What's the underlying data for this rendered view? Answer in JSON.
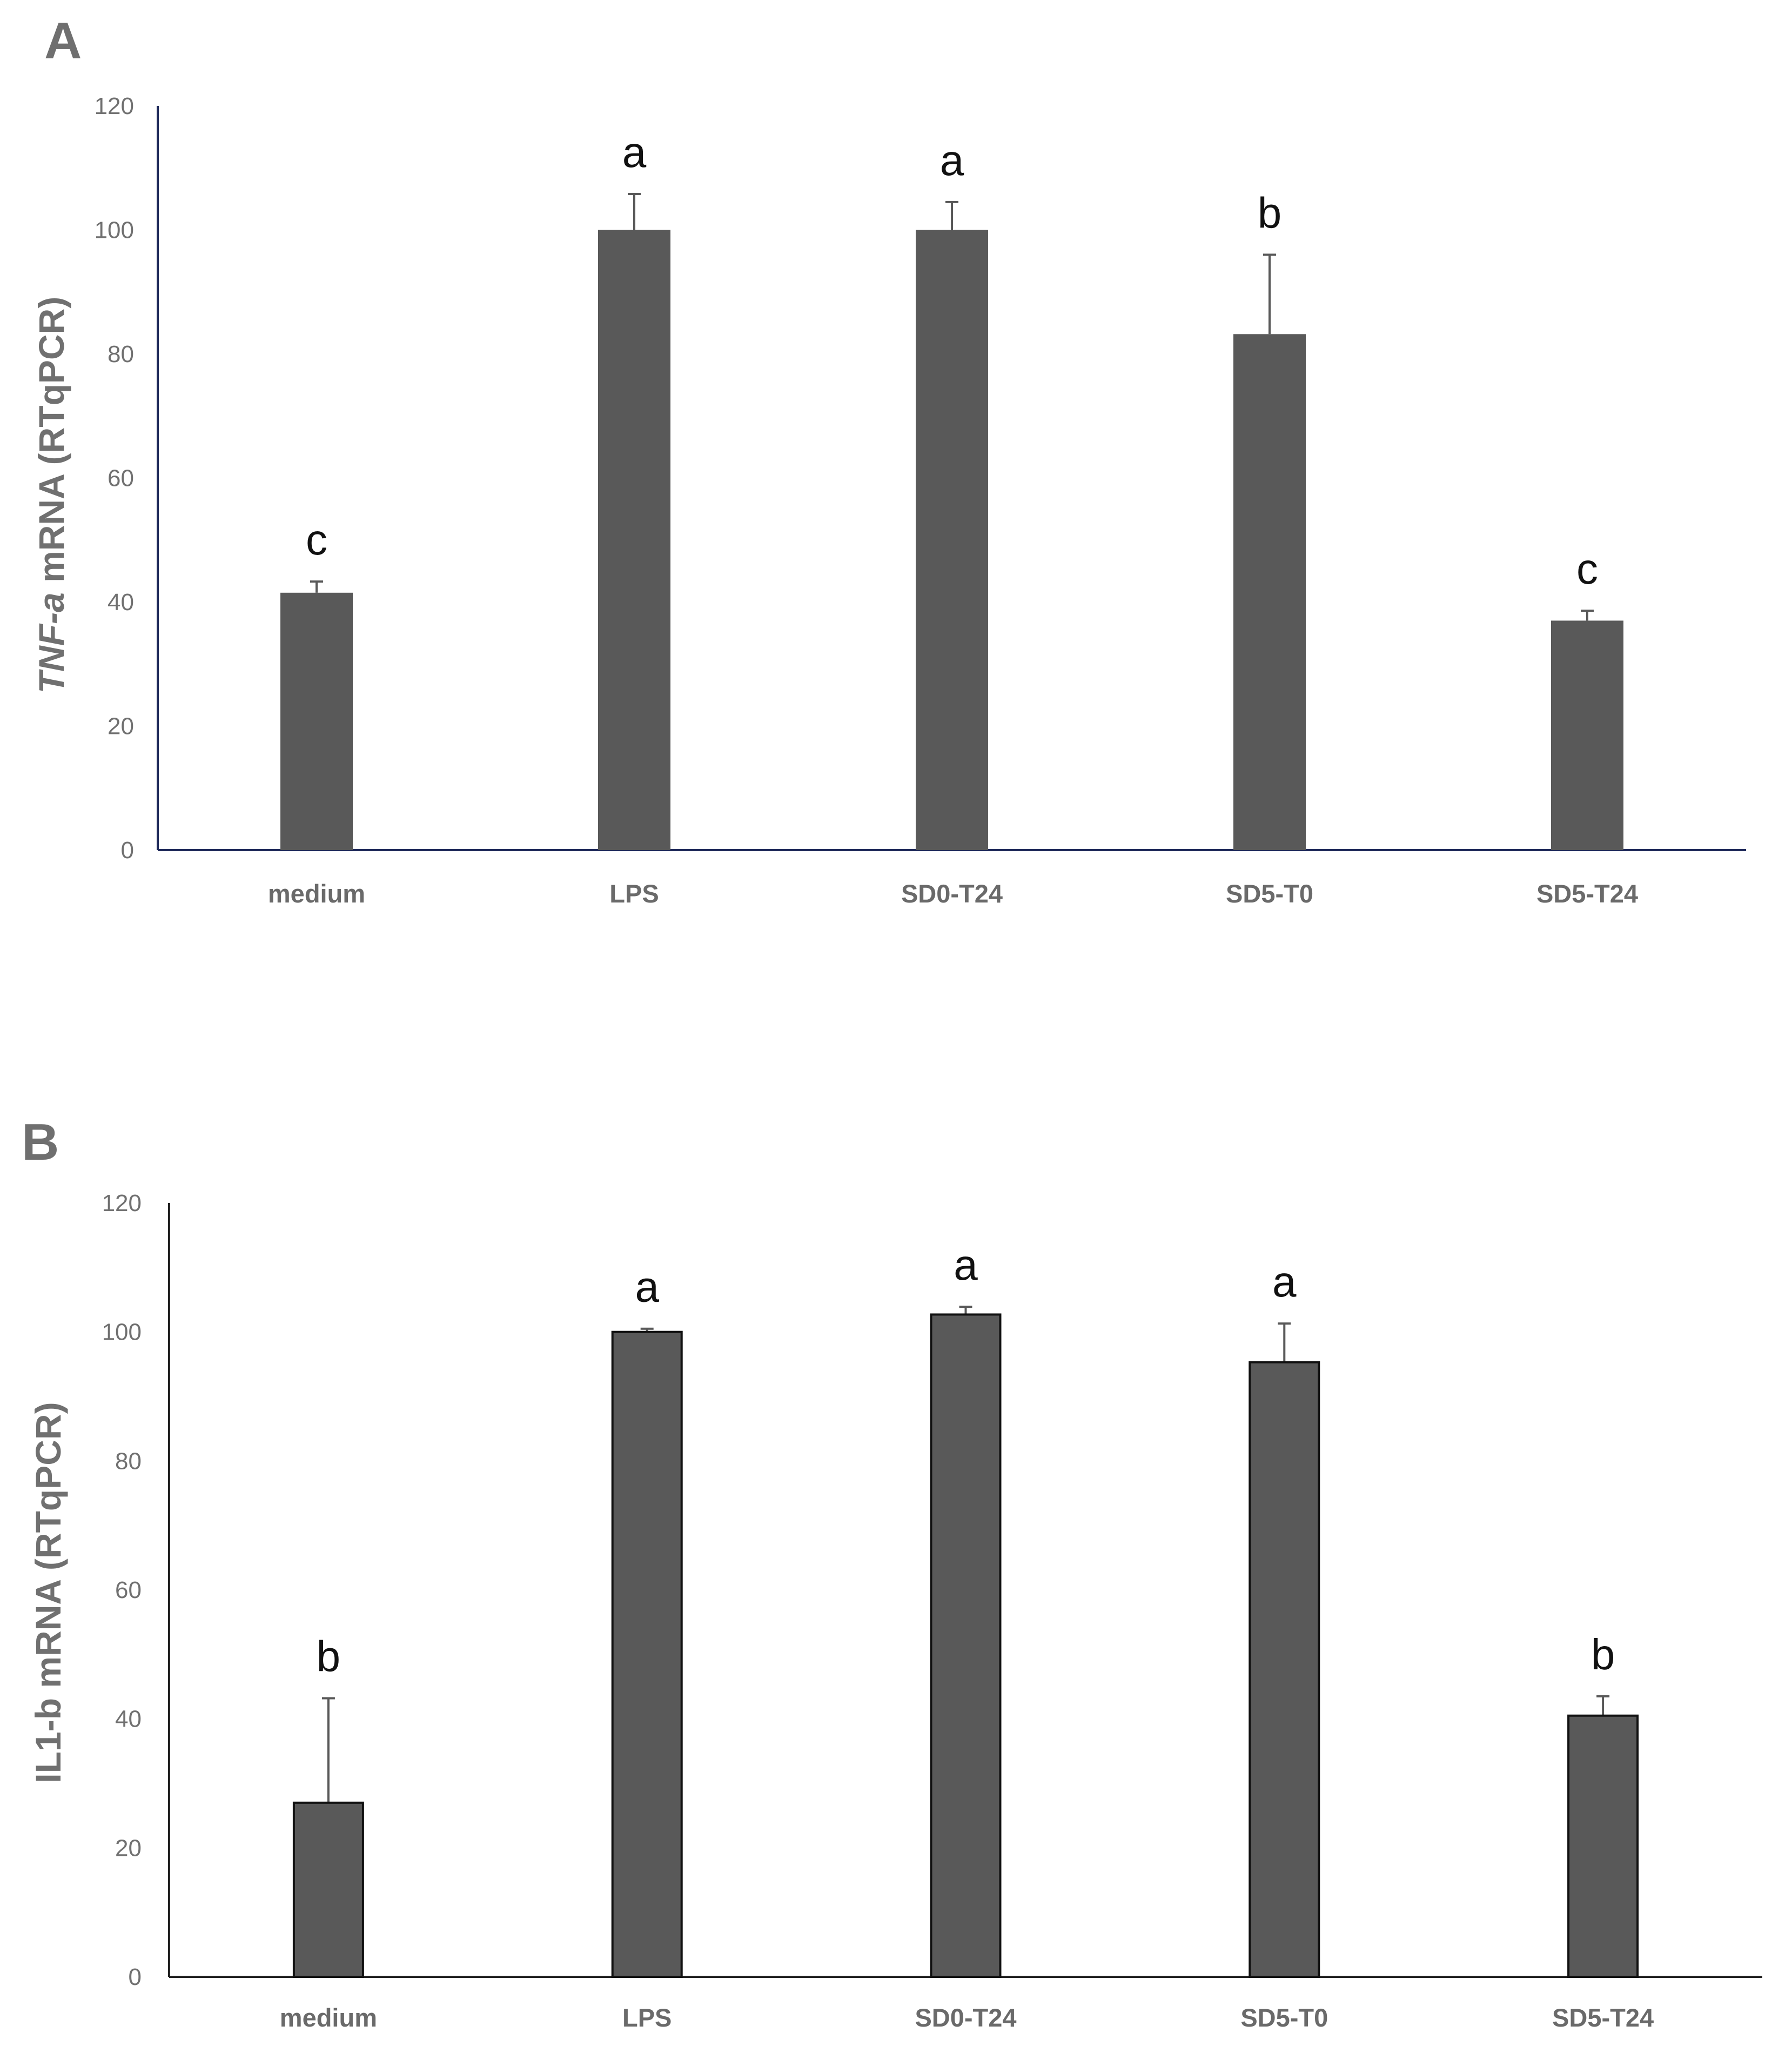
{
  "colors": {
    "bar": "#595959",
    "axisA": "#1f2a5a",
    "axisB": "#222222",
    "errorbar": "#595959"
  },
  "chart_data": [
    {
      "panel": "A",
      "type": "bar",
      "categories": [
        "medium",
        "LPS",
        "SD0-T24",
        "SD5-T0",
        "SD5-T24"
      ],
      "values": [
        41.5,
        100,
        100,
        83.2,
        37
      ],
      "errors": [
        1.8,
        5.8,
        4.5,
        12.8,
        1.6
      ],
      "significance": [
        "c",
        "a",
        "a",
        "b",
        "c"
      ],
      "ylabel_italic": "TNF-a",
      "ylabel_rest": " mRNA (RTqPCR)",
      "ylim": [
        0,
        120
      ],
      "yticks": [
        0,
        20,
        40,
        60,
        80,
        100,
        120
      ],
      "grid": false
    },
    {
      "panel": "B",
      "type": "bar",
      "categories": [
        "medium",
        "LPS",
        "SD0-T24",
        "SD5-T0",
        "SD5-T24"
      ],
      "values": [
        27,
        100,
        102.7,
        95.3,
        40.5
      ],
      "errors": [
        16.2,
        0.5,
        1.2,
        6,
        3
      ],
      "significance": [
        "b",
        "a",
        "a",
        "a",
        "b"
      ],
      "ylabel_italic": "",
      "ylabel_rest": "IL1-b mRNA (RTqPCR)",
      "ylim": [
        0,
        120
      ],
      "yticks": [
        0,
        20,
        40,
        60,
        80,
        100,
        120
      ],
      "grid": false
    }
  ]
}
